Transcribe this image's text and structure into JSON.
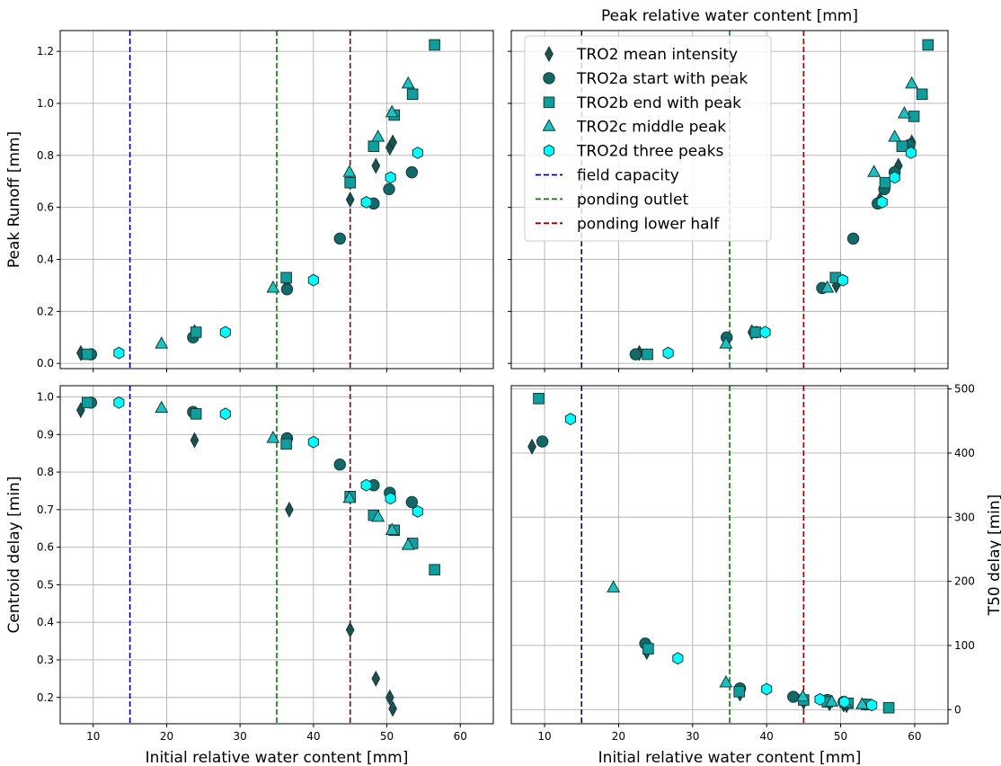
{
  "colors": {
    "mean": "#1f4f4f",
    "a": "#136868",
    "b": "#129d9d",
    "c": "#1ec0c0",
    "d": "#00ffff",
    "edge": "#0e3b3b",
    "field_capacity": "#00008b",
    "ponding_outlet": "#008000",
    "ponding_lower": "#8b0000",
    "grid": "#b0b0b0"
  },
  "legend": {
    "placement": "upper-left of top-right panel",
    "entries": [
      {
        "label": "TRO2 mean intensity",
        "marker": "thin_diamond",
        "color_key": "mean"
      },
      {
        "label": "TRO2a start with peak",
        "marker": "circle",
        "color_key": "a"
      },
      {
        "label": "TRO2b end with peak",
        "marker": "square",
        "color_key": "b"
      },
      {
        "label": "TRO2c middle peak",
        "marker": "triangle",
        "color_key": "c"
      },
      {
        "label": "TRO2d three peaks",
        "marker": "hexagon",
        "color_key": "d"
      },
      {
        "label": "field capacity",
        "marker": "dashed-line",
        "color_key": "field_capacity"
      },
      {
        "label": "ponding outlet",
        "marker": "dashed-line",
        "color_key": "ponding_outlet"
      },
      {
        "label": "ponding lower half",
        "marker": "dashed-line",
        "color_key": "ponding_lower"
      }
    ]
  },
  "chart_data": [
    {
      "panel": "top-left",
      "type": "scatter",
      "xlabel": "",
      "ylabel": "Peak Runoff [mm]",
      "xlim": [
        5.5,
        64.5
      ],
      "ylim": [
        -0.02,
        1.28
      ],
      "xticks": [
        10,
        20,
        30,
        40,
        50,
        60
      ],
      "xtick_labels_shown": false,
      "yticks": [
        0.0,
        0.2,
        0.4,
        0.6,
        0.8,
        1.0,
        1.2
      ],
      "ytick_labels": [
        "0.0",
        "0.2",
        "0.4",
        "0.6",
        "0.8",
        "1.0",
        "1.2"
      ],
      "grid": true,
      "vlines": [
        {
          "x": 15,
          "color_key": "field_capacity"
        },
        {
          "x": 35,
          "color_key": "ponding_outlet"
        },
        {
          "x": 45,
          "color_key": "ponding_lower"
        }
      ],
      "series": [
        {
          "name": "TRO2 mean intensity",
          "color_key": "mean",
          "marker": "thin_diamond",
          "x": [
            8.3,
            23.8,
            36.4,
            45.0,
            48.5,
            50.4,
            50.8
          ],
          "y": [
            0.04,
            0.12,
            0.3,
            0.63,
            0.76,
            0.83,
            0.85
          ]
        },
        {
          "name": "TRO2a start with peak",
          "color_key": "a",
          "marker": "circle",
          "x": [
            9.7,
            23.6,
            36.4,
            43.6,
            48.2,
            50.3,
            53.4
          ],
          "y": [
            0.035,
            0.1,
            0.285,
            0.48,
            0.615,
            0.67,
            0.735
          ]
        },
        {
          "name": "TRO2b end with peak",
          "color_key": "b",
          "marker": "square",
          "x": [
            9.2,
            24.0,
            36.3,
            45.0,
            48.2,
            51.0,
            53.5,
            56.5
          ],
          "y": [
            0.035,
            0.12,
            0.33,
            0.695,
            0.835,
            0.955,
            1.035,
            1.225
          ]
        },
        {
          "name": "TRO2c middle peak",
          "color_key": "c",
          "marker": "triangle",
          "x": [
            19.3,
            34.5,
            44.9,
            48.8,
            50.7,
            52.9
          ],
          "y": [
            0.075,
            0.29,
            0.735,
            0.87,
            0.965,
            1.075
          ]
        },
        {
          "name": "TRO2d three peaks",
          "color_key": "d",
          "marker": "hexagon",
          "x": [
            13.5,
            28.0,
            40.0,
            47.2,
            50.5,
            54.2
          ],
          "y": [
            0.04,
            0.12,
            0.32,
            0.62,
            0.715,
            0.81
          ]
        }
      ]
    },
    {
      "panel": "top-right",
      "type": "scatter",
      "title": "Peak relative water content [mm]",
      "xlabel": "",
      "ylabel": "",
      "xlim": [
        5.5,
        64.5
      ],
      "ylim": [
        -0.02,
        1.28
      ],
      "xticks": [
        10,
        20,
        30,
        40,
        50,
        60
      ],
      "xtick_labels_shown": false,
      "yticks": [
        0.0,
        0.2,
        0.4,
        0.6,
        0.8,
        1.0,
        1.2
      ],
      "ytick_labels_shown": false,
      "grid": true,
      "vlines": [
        {
          "x": 15,
          "color_key": "field_capacity"
        },
        {
          "x": 35,
          "color_key": "ponding_outlet"
        },
        {
          "x": 45,
          "color_key": "ponding_lower"
        }
      ],
      "series": [
        {
          "name": "TRO2 mean intensity",
          "color_key": "mean",
          "marker": "thin_diamond",
          "x": [
            22.8,
            38.0,
            49.4,
            55.3,
            57.8,
            59.3,
            59.6
          ],
          "y": [
            0.04,
            0.12,
            0.3,
            0.63,
            0.76,
            0.83,
            0.85
          ]
        },
        {
          "name": "TRO2a start with peak",
          "color_key": "a",
          "marker": "circle",
          "x": [
            22.3,
            34.6,
            38.6,
            47.5,
            51.7,
            55.0,
            55.9,
            57.3,
            59.3
          ],
          "y": [
            0.035,
            0.1,
            0.12,
            0.29,
            0.48,
            0.615,
            0.67,
            0.735,
            0.84
          ]
        },
        {
          "name": "TRO2b end with peak",
          "color_key": "b",
          "marker": "square",
          "x": [
            23.9,
            38.5,
            49.3,
            56.0,
            58.3,
            59.9,
            61.0,
            61.8
          ],
          "y": [
            0.035,
            0.12,
            0.33,
            0.695,
            0.835,
            0.95,
            1.035,
            1.225
          ]
        },
        {
          "name": "TRO2c middle peak",
          "color_key": "c",
          "marker": "triangle",
          "x": [
            34.5,
            48.2,
            54.5,
            57.3,
            58.6,
            59.6
          ],
          "y": [
            0.075,
            0.29,
            0.735,
            0.87,
            0.96,
            1.075
          ]
        },
        {
          "name": "TRO2d three peaks",
          "color_key": "d",
          "marker": "hexagon",
          "x": [
            26.7,
            39.8,
            50.3,
            55.6,
            57.3,
            59.5
          ],
          "y": [
            0.04,
            0.12,
            0.32,
            0.62,
            0.715,
            0.81
          ]
        }
      ]
    },
    {
      "panel": "bottom-left",
      "type": "scatter",
      "xlabel": "Initial relative water content [mm]",
      "ylabel": "Centroid delay [min]",
      "xlim": [
        5.5,
        64.5
      ],
      "ylim": [
        0.13,
        1.03
      ],
      "xticks": [
        10,
        20,
        30,
        40,
        50,
        60
      ],
      "xtick_labels": [
        "10",
        "20",
        "30",
        "40",
        "50",
        "60"
      ],
      "yticks": [
        0.2,
        0.3,
        0.4,
        0.5,
        0.6,
        0.7,
        0.8,
        0.9,
        1.0
      ],
      "ytick_labels": [
        "0.2",
        "0.3",
        "0.4",
        "0.5",
        "0.6",
        "0.7",
        "0.8",
        "0.9",
        "1.0"
      ],
      "grid": true,
      "vlines": [
        {
          "x": 15,
          "color_key": "field_capacity"
        },
        {
          "x": 35,
          "color_key": "ponding_outlet"
        },
        {
          "x": 45,
          "color_key": "ponding_lower"
        }
      ],
      "series": [
        {
          "name": "TRO2 mean intensity",
          "color_key": "mean",
          "marker": "thin_diamond",
          "x": [
            8.3,
            23.8,
            36.7,
            45.0,
            48.5,
            50.4,
            50.8
          ],
          "y": [
            0.965,
            0.885,
            0.7,
            0.38,
            0.25,
            0.2,
            0.17
          ]
        },
        {
          "name": "TRO2a start with peak",
          "color_key": "a",
          "marker": "circle",
          "x": [
            9.7,
            23.6,
            36.4,
            43.6,
            48.2,
            50.4,
            53.4
          ],
          "y": [
            0.985,
            0.96,
            0.89,
            0.82,
            0.765,
            0.745,
            0.72
          ]
        },
        {
          "name": "TRO2b end with peak",
          "color_key": "b",
          "marker": "square",
          "x": [
            9.2,
            24.0,
            36.3,
            45.0,
            48.2,
            51.0,
            53.5,
            56.5
          ],
          "y": [
            0.985,
            0.955,
            0.875,
            0.735,
            0.685,
            0.645,
            0.61,
            0.54
          ]
        },
        {
          "name": "TRO2c middle peak",
          "color_key": "c",
          "marker": "triangle",
          "x": [
            19.3,
            34.5,
            44.9,
            48.8,
            50.7,
            52.9
          ],
          "y": [
            0.97,
            0.89,
            0.73,
            0.68,
            0.645,
            0.605
          ]
        },
        {
          "name": "TRO2d three peaks",
          "color_key": "d",
          "marker": "hexagon",
          "x": [
            13.5,
            28.0,
            40.0,
            47.2,
            50.5,
            54.2
          ],
          "y": [
            0.985,
            0.955,
            0.88,
            0.765,
            0.73,
            0.695
          ]
        }
      ]
    },
    {
      "panel": "bottom-right",
      "type": "scatter",
      "xlabel": "Initial relative water content [mm]",
      "ylabel": "T50 delay [min]",
      "y_axis_side": "right",
      "xlim": [
        5.5,
        64.5
      ],
      "ylim": [
        -22,
        505
      ],
      "xticks": [
        10,
        20,
        30,
        40,
        50,
        60
      ],
      "xtick_labels": [
        "10",
        "20",
        "30",
        "40",
        "50",
        "60"
      ],
      "yticks": [
        0,
        100,
        200,
        300,
        400,
        500
      ],
      "ytick_labels": [
        "0",
        "100",
        "200",
        "300",
        "400",
        "500"
      ],
      "grid": true,
      "vlines": [
        {
          "x": 15,
          "color_key": "field_capacity"
        },
        {
          "x": 35,
          "color_key": "ponding_outlet"
        },
        {
          "x": 45,
          "color_key": "ponding_lower"
        }
      ],
      "series": [
        {
          "name": "TRO2 mean intensity",
          "color_key": "mean",
          "marker": "thin_diamond",
          "x": [
            8.3,
            23.8,
            36.4,
            45.0,
            48.5,
            50.4,
            50.8
          ],
          "y": [
            410,
            90,
            25,
            12,
            10,
            8,
            7
          ]
        },
        {
          "name": "TRO2a start with peak",
          "color_key": "a",
          "marker": "circle",
          "x": [
            9.7,
            23.6,
            36.4,
            43.6,
            48.2,
            50.4,
            53.4
          ],
          "y": [
            418,
            103,
            33,
            20,
            15,
            12,
            8
          ]
        },
        {
          "name": "TRO2b end with peak",
          "color_key": "b",
          "marker": "square",
          "x": [
            9.2,
            24.0,
            36.3,
            45.0,
            48.2,
            51.0,
            53.5,
            56.5
          ],
          "y": [
            485,
            95,
            28,
            15,
            12,
            10,
            8,
            3
          ]
        },
        {
          "name": "TRO2c middle peak",
          "color_key": "c",
          "marker": "triangle",
          "x": [
            19.3,
            34.5,
            44.9,
            48.8,
            50.7,
            52.9
          ],
          "y": [
            190,
            42,
            20,
            12,
            10,
            8
          ]
        },
        {
          "name": "TRO2d three peaks",
          "color_key": "d",
          "marker": "hexagon",
          "x": [
            13.5,
            28.0,
            40.0,
            47.2,
            50.5,
            54.2
          ],
          "y": [
            453,
            80,
            32,
            16,
            12,
            7
          ]
        }
      ]
    }
  ]
}
